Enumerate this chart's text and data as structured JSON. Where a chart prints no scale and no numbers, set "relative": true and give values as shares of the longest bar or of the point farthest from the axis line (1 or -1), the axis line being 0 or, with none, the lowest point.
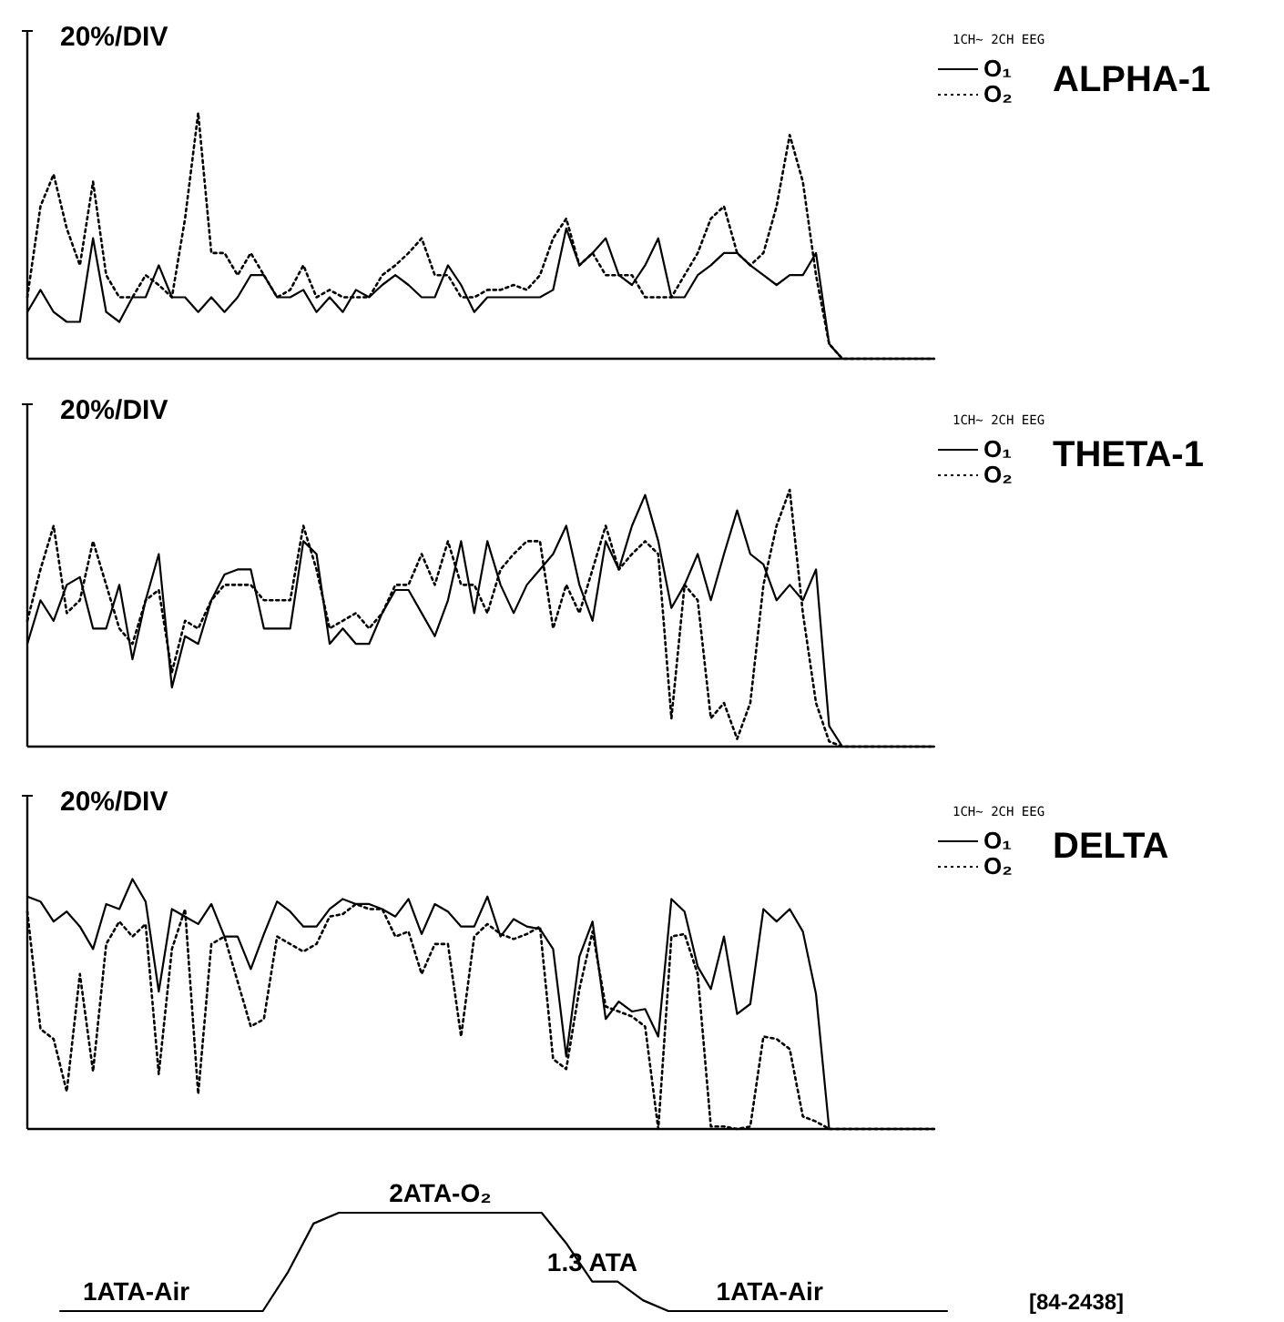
{
  "chart_data": [
    {
      "type": "line",
      "annotations": [
        "ALPHA-1"
      ],
      "ylabel": "20%/DIV",
      "legend_title": "1CH~ 2CH EEG",
      "legend": "right",
      "relative": true,
      "categories": [
        null,
        null,
        null,
        null,
        null,
        null,
        null,
        null,
        null,
        null,
        null,
        null,
        null,
        null,
        null,
        null,
        null,
        null,
        null,
        null,
        null,
        null,
        null,
        null,
        null,
        null,
        null,
        null,
        null,
        null,
        null,
        null,
        null,
        null,
        null,
        null,
        null,
        null,
        null,
        null,
        null,
        null,
        null,
        null,
        null,
        null,
        null,
        null,
        null,
        null,
        null,
        null,
        null,
        null,
        null,
        null,
        null,
        null,
        null,
        null,
        null,
        null,
        null,
        null,
        null,
        null,
        null,
        null,
        null,
        null
      ],
      "series": [
        {
          "name": "O₁",
          "color": "#000000",
          "line_style": "solid",
          "values": [
            0.19,
            0.28,
            0.19,
            0.15,
            0.15,
            0.49,
            0.19,
            0.15,
            0.25,
            0.25,
            0.38,
            0.25,
            0.25,
            0.19,
            0.25,
            0.19,
            0.25,
            0.34,
            0.34,
            0.25,
            0.25,
            0.28,
            0.19,
            0.25,
            0.19,
            0.28,
            0.25,
            0.3,
            0.34,
            0.3,
            0.25,
            0.25,
            0.38,
            0.3,
            0.19,
            0.25,
            0.25,
            0.25,
            0.25,
            0.25,
            0.28,
            0.53,
            0.38,
            0.43,
            0.49,
            0.34,
            0.3,
            0.38,
            0.49,
            0.25,
            0.25,
            0.34,
            0.38,
            0.43,
            0.43,
            0.38,
            0.34,
            0.3,
            0.34,
            0.34,
            0.43,
            0.06,
            0,
            0,
            0,
            0,
            0,
            0,
            0,
            0
          ]
        },
        {
          "name": "O₂",
          "color": "#000000",
          "line_style": "dotted",
          "values": [
            0.25,
            0.62,
            0.75,
            0.53,
            0.38,
            0.72,
            0.34,
            0.25,
            0.25,
            0.34,
            0.3,
            0.25,
            0.57,
            1,
            0.43,
            0.43,
            0.34,
            0.43,
            0.34,
            0.25,
            0.28,
            0.38,
            0.25,
            0.28,
            0.25,
            0.25,
            0.25,
            0.34,
            0.38,
            0.43,
            0.49,
            0.34,
            0.34,
            0.25,
            0.25,
            0.28,
            0.28,
            0.3,
            0.28,
            0.34,
            0.49,
            0.57,
            0.38,
            0.43,
            0.34,
            0.34,
            0.34,
            0.25,
            0.25,
            0.25,
            0.34,
            0.43,
            0.57,
            0.62,
            0.43,
            0.38,
            0.43,
            0.62,
            0.91,
            0.72,
            0.34,
            0.06,
            0,
            0,
            0,
            0,
            0,
            0,
            0,
            0
          ]
        }
      ]
    },
    {
      "type": "line",
      "annotations": [
        "THETA-1"
      ],
      "ylabel": "20%/DIV",
      "legend_title": "1CH~ 2CH EEG",
      "legend": "right",
      "relative": true,
      "categories": [
        null,
        null,
        null,
        null,
        null,
        null,
        null,
        null,
        null,
        null,
        null,
        null,
        null,
        null,
        null,
        null,
        null,
        null,
        null,
        null,
        null,
        null,
        null,
        null,
        null,
        null,
        null,
        null,
        null,
        null,
        null,
        null,
        null,
        null,
        null,
        null,
        null,
        null,
        null,
        null,
        null,
        null,
        null,
        null,
        null,
        null,
        null,
        null,
        null,
        null,
        null,
        null,
        null,
        null,
        null,
        null,
        null,
        null,
        null,
        null,
        null,
        null,
        null,
        null,
        null,
        null,
        null,
        null,
        null,
        null
      ],
      "series": [
        {
          "name": "O₁",
          "color": "#000000",
          "line_style": "solid",
          "values": [
            0.4,
            0.57,
            0.49,
            0.63,
            0.66,
            0.46,
            0.46,
            0.63,
            0.34,
            0.57,
            0.75,
            0.23,
            0.43,
            0.4,
            0.57,
            0.67,
            0.69,
            0.69,
            0.46,
            0.46,
            0.46,
            0.8,
            0.75,
            0.4,
            0.46,
            0.4,
            0.4,
            0.52,
            0.61,
            0.61,
            0.52,
            0.43,
            0.57,
            0.8,
            0.52,
            0.8,
            0.63,
            0.52,
            0.63,
            0.69,
            0.75,
            0.86,
            0.63,
            0.49,
            0.8,
            0.69,
            0.86,
            0.98,
            0.8,
            0.54,
            0.63,
            0.75,
            0.57,
            0.75,
            0.92,
            0.75,
            0.71,
            0.57,
            0.63,
            0.57,
            0.69,
            0.08,
            0,
            0,
            0,
            0,
            0,
            0,
            0,
            0
          ]
        },
        {
          "name": "O₂",
          "color": "#000000",
          "line_style": "dotted",
          "values": [
            0.49,
            0.69,
            0.86,
            0.52,
            0.57,
            0.8,
            0.63,
            0.46,
            0.4,
            0.57,
            0.61,
            0.29,
            0.49,
            0.46,
            0.57,
            0.63,
            0.63,
            0.63,
            0.57,
            0.57,
            0.57,
            0.86,
            0.69,
            0.46,
            0.49,
            0.52,
            0.46,
            0.52,
            0.63,
            0.63,
            0.75,
            0.63,
            0.8,
            0.63,
            0.63,
            0.52,
            0.69,
            0.75,
            0.8,
            0.8,
            0.46,
            0.63,
            0.52,
            0.69,
            0.86,
            0.69,
            0.75,
            0.8,
            0.75,
            0.11,
            0.63,
            0.57,
            0.11,
            0.17,
            0.03,
            0.17,
            0.63,
            0.86,
            1,
            0.52,
            0.17,
            0.02,
            0,
            0,
            0,
            0,
            0,
            0,
            0,
            0
          ]
        }
      ]
    },
    {
      "type": "line",
      "annotations": [
        "DELTA"
      ],
      "ylabel": "20%/DIV",
      "legend_title": "1CH~ 2CH EEG",
      "legend": "right",
      "relative": true,
      "categories": [
        null,
        null,
        null,
        null,
        null,
        null,
        null,
        null,
        null,
        null,
        null,
        null,
        null,
        null,
        null,
        null,
        null,
        null,
        null,
        null,
        null,
        null,
        null,
        null,
        null,
        null,
        null,
        null,
        null,
        null,
        null,
        null,
        null,
        null,
        null,
        null,
        null,
        null,
        null,
        null,
        null,
        null,
        null,
        null,
        null,
        null,
        null,
        null,
        null,
        null,
        null,
        null,
        null,
        null,
        null,
        null,
        null,
        null,
        null,
        null,
        null,
        null,
        null,
        null,
        null,
        null,
        null,
        null,
        null,
        null
      ],
      "series": [
        {
          "name": "O₁",
          "color": "#000000",
          "line_style": "solid",
          "values": [
            0.93,
            0.91,
            0.83,
            0.87,
            0.81,
            0.72,
            0.9,
            0.88,
            1,
            0.91,
            0.55,
            0.88,
            0.85,
            0.82,
            0.9,
            0.77,
            0.77,
            0.64,
            0.78,
            0.91,
            0.87,
            0.81,
            0.81,
            0.88,
            0.92,
            0.9,
            0.9,
            0.88,
            0.85,
            0.92,
            0.78,
            0.9,
            0.87,
            0.81,
            0.81,
            0.93,
            0.77,
            0.84,
            0.81,
            0.8,
            0.72,
            0.29,
            0.69,
            0.83,
            0.44,
            0.51,
            0.47,
            0.48,
            0.37,
            0.92,
            0.87,
            0.65,
            0.56,
            0.77,
            0.46,
            0.5,
            0.88,
            0.83,
            0.88,
            0.79,
            0.54,
            0,
            0,
            0,
            0,
            0,
            0,
            0,
            0,
            0
          ]
        },
        {
          "name": "O₂",
          "color": "#000000",
          "line_style": "dotted",
          "values": [
            0.87,
            0.4,
            0.36,
            0.15,
            0.62,
            0.23,
            0.74,
            0.83,
            0.77,
            0.82,
            0.22,
            0.72,
            0.88,
            0.14,
            0.74,
            0.77,
            0.59,
            0.41,
            0.44,
            0.77,
            0.74,
            0.71,
            0.74,
            0.85,
            0.86,
            0.9,
            0.88,
            0.88,
            0.77,
            0.79,
            0.62,
            0.74,
            0.74,
            0.37,
            0.77,
            0.82,
            0.78,
            0.76,
            0.78,
            0.81,
            0.28,
            0.24,
            0.56,
            0.79,
            0.49,
            0.47,
            0.45,
            0.41,
            0,
            0.77,
            0.78,
            0.62,
            0.01,
            0.01,
            0,
            0.01,
            0.37,
            0.36,
            0.32,
            0.05,
            0.03,
            0,
            0,
            0,
            0,
            0,
            0,
            0,
            0,
            0
          ]
        }
      ]
    },
    {
      "type": "line",
      "annotations": [
        "[84-2438]"
      ],
      "categories": [
        null,
        null,
        null,
        null,
        null,
        null,
        null,
        null,
        null,
        null,
        null,
        null,
        null,
        null,
        null,
        null,
        null,
        null,
        null,
        null,
        null,
        null,
        null,
        null,
        null,
        null,
        null,
        null,
        null,
        null,
        null,
        null,
        null,
        null,
        null,
        null
      ],
      "series": [
        {
          "color": "#000000",
          "line_style": "solid",
          "values": [
            1,
            1,
            1,
            1,
            1,
            1,
            1,
            1,
            1,
            1.4,
            1.89,
            2,
            2,
            2,
            2,
            2,
            2,
            2,
            2,
            2,
            1.68,
            1.3,
            1.3,
            1.11,
            1,
            1,
            1,
            1,
            1,
            1,
            1,
            1,
            1,
            1,
            1,
            1
          ],
          "value_labels": [
            null,
            null,
            null,
            "1ATA-Air",
            null,
            null,
            null,
            null,
            null,
            null,
            null,
            null,
            null,
            null,
            null,
            "2ATA-O₂",
            null,
            null,
            null,
            null,
            null,
            "1.3 ATA",
            null,
            null,
            null,
            null,
            null,
            null,
            "1ATA-Air",
            null,
            null,
            null,
            null,
            null,
            null,
            null
          ]
        }
      ]
    }
  ]
}
